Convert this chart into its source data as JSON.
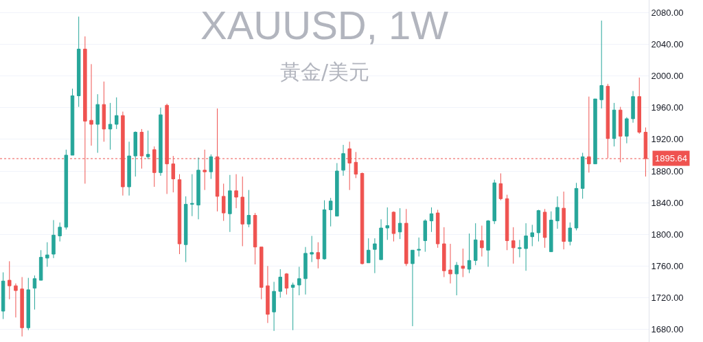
{
  "chart_data": {
    "type": "candlestick",
    "title": "XAUUSD, 1W",
    "subtitle": "黃金/美元",
    "categories": [
      null,
      null,
      null,
      null,
      null,
      null,
      null,
      null,
      null,
      null,
      null,
      null,
      null,
      null,
      null,
      null,
      null,
      null,
      null,
      null,
      null,
      null,
      null,
      null,
      null,
      null,
      null,
      null,
      null,
      null,
      null,
      null,
      null,
      null,
      null,
      null,
      null,
      null,
      null,
      null,
      null,
      null,
      null,
      null,
      null,
      null,
      null,
      null,
      null,
      null,
      null,
      null,
      null,
      null,
      null,
      null,
      null,
      null,
      null,
      null,
      null,
      null,
      null,
      null,
      null,
      null,
      null,
      null,
      null,
      null,
      null,
      null,
      null,
      null,
      null,
      null,
      null,
      null,
      null,
      null,
      null,
      null,
      null,
      null,
      null,
      null,
      null,
      null,
      null,
      null,
      null,
      null,
      null,
      null,
      null,
      null,
      null,
      null,
      null,
      null,
      null,
      null,
      null
    ],
    "ohlc": [
      [
        1703,
        1752,
        1693,
        1741
      ],
      [
        1742,
        1766,
        1718,
        1735
      ],
      [
        1735,
        1738,
        1695,
        1729
      ],
      [
        1731,
        1746,
        1671,
        1682
      ],
      [
        1682,
        1745,
        1679,
        1730
      ],
      [
        1732,
        1748,
        1705,
        1744
      ],
      [
        1742,
        1780,
        1742,
        1771
      ],
      [
        1770,
        1790,
        1759,
        1774
      ],
      [
        1775,
        1818,
        1770,
        1799
      ],
      [
        1798,
        1815,
        1791,
        1809
      ],
      [
        1809,
        1907,
        1806,
        1900
      ],
      [
        1900,
        1984,
        1900,
        1975
      ],
      [
        1975,
        2075,
        1961,
        2034
      ],
      [
        2034,
        2050,
        1864,
        1943
      ],
      [
        1944,
        2015,
        1912,
        1939
      ],
      [
        1939,
        1977,
        1903,
        1964
      ],
      [
        1964,
        1993,
        1917,
        1933
      ],
      [
        1933,
        1966,
        1907,
        1939
      ],
      [
        1939,
        1973,
        1933,
        1950
      ],
      [
        1950,
        1955,
        1849,
        1860
      ],
      [
        1860,
        1917,
        1849,
        1899
      ],
      [
        1899,
        1930,
        1873,
        1929
      ],
      [
        1929,
        1933,
        1883,
        1899
      ],
      [
        1898,
        1931,
        1895,
        1901
      ],
      [
        1907,
        1911,
        1860,
        1878
      ],
      [
        1878,
        1960,
        1874,
        1951
      ],
      [
        1963,
        1965,
        1851,
        1889
      ],
      [
        1889,
        1899,
        1853,
        1870
      ],
      [
        1869,
        1876,
        1775,
        1788
      ],
      [
        1787,
        1848,
        1765,
        1838
      ],
      [
        1838,
        1876,
        1823,
        1839
      ],
      [
        1837,
        1897,
        1819,
        1881
      ],
      [
        1881,
        1907,
        1856,
        1879
      ],
      [
        1879,
        1901,
        1870,
        1898
      ],
      [
        1898,
        1959,
        1829,
        1848
      ],
      [
        1848,
        1864,
        1817,
        1827
      ],
      [
        1826,
        1875,
        1803,
        1855
      ],
      [
        1855,
        1876,
        1833,
        1847
      ],
      [
        1847,
        1873,
        1785,
        1813
      ],
      [
        1813,
        1856,
        1809,
        1824
      ],
      [
        1824,
        1827,
        1762,
        1784
      ],
      [
        1784,
        1784,
        1718,
        1733
      ],
      [
        1735,
        1760,
        1688,
        1699
      ],
      [
        1702,
        1740,
        1678,
        1728
      ],
      [
        1728,
        1756,
        1720,
        1746
      ],
      [
        1750,
        1751,
        1724,
        1732
      ],
      [
        1733,
        1739,
        1679,
        1736
      ],
      [
        1736,
        1759,
        1723,
        1744
      ],
      [
        1744,
        1784,
        1724,
        1776
      ],
      [
        1775,
        1798,
        1765,
        1777
      ],
      [
        1777,
        1790,
        1757,
        1769
      ],
      [
        1769,
        1843,
        1768,
        1831
      ],
      [
        1831,
        1846,
        1810,
        1842
      ],
      [
        1823,
        1890,
        1823,
        1880
      ],
      [
        1881,
        1913,
        1874,
        1902
      ],
      [
        1908,
        1917,
        1856,
        1890
      ],
      [
        1891,
        1904,
        1871,
        1876
      ],
      [
        1877,
        1878,
        1762,
        1763
      ],
      [
        1764,
        1795,
        1764,
        1780
      ],
      [
        1781,
        1795,
        1751,
        1788
      ],
      [
        1768,
        1819,
        1768,
        1808
      ],
      [
        1808,
        1834,
        1793,
        1811
      ],
      [
        1828,
        1829,
        1791,
        1801
      ],
      [
        1803,
        1833,
        1794,
        1814
      ],
      [
        1814,
        1832,
        1760,
        1763
      ],
      [
        1763,
        1780,
        1684,
        1780
      ],
      [
        1780,
        1796,
        1772,
        1781
      ],
      [
        1792,
        1819,
        1778,
        1817
      ],
      [
        1817,
        1834,
        1803,
        1826
      ],
      [
        1827,
        1831,
        1783,
        1788
      ],
      [
        1788,
        1809,
        1746,
        1754
      ],
      [
        1755,
        1788,
        1738,
        1750
      ],
      [
        1750,
        1765,
        1723,
        1761
      ],
      [
        1760,
        1782,
        1746,
        1757
      ],
      [
        1756,
        1801,
        1751,
        1767
      ],
      [
        1767,
        1814,
        1761,
        1793
      ],
      [
        1792,
        1811,
        1772,
        1783
      ],
      [
        1780,
        1818,
        1759,
        1817
      ],
      [
        1817,
        1869,
        1813,
        1865
      ],
      [
        1864,
        1877,
        1843,
        1845
      ],
      [
        1845,
        1850,
        1780,
        1792
      ],
      [
        1792,
        1809,
        1763,
        1783
      ],
      [
        1782,
        1793,
        1771,
        1783
      ],
      [
        1782,
        1814,
        1754,
        1798
      ],
      [
        1797,
        1812,
        1785,
        1802
      ],
      [
        1802,
        1831,
        1791,
        1830
      ],
      [
        1828,
        1832,
        1783,
        1796
      ],
      [
        1778,
        1829,
        1778,
        1818
      ],
      [
        1817,
        1848,
        1807,
        1834
      ],
      [
        1833,
        1854,
        1781,
        1791
      ],
      [
        1791,
        1815,
        1786,
        1808
      ],
      [
        1808,
        1865,
        1805,
        1858
      ],
      [
        1858,
        1903,
        1845,
        1898
      ],
      [
        1898,
        1974,
        1878,
        1889
      ],
      [
        1889,
        1971,
        1889,
        1971
      ],
      [
        1970,
        2070,
        1959,
        1988
      ],
      [
        1987,
        1990,
        1896,
        1921
      ],
      [
        1921,
        1966,
        1911,
        1957
      ],
      [
        1957,
        1961,
        1891,
        1924
      ],
      [
        1924,
        1948,
        1915,
        1946
      ],
      [
        1946,
        1981,
        1941,
        1974
      ],
      [
        1974,
        1998,
        1927,
        1929
      ],
      [
        1929,
        1935,
        1873,
        1895.64
      ]
    ],
    "colors": [
      "#26a69a",
      "#ef5350",
      "#ef5350",
      "#ef5350",
      "#26a69a",
      "#26a69a",
      "#26a69a",
      "#26a69a",
      "#26a69a",
      "#26a69a",
      "#26a69a",
      "#26a69a",
      "#26a69a",
      "#ef5350",
      "#ef5350",
      "#26a69a",
      "#ef5350",
      "#26a69a",
      "#26a69a",
      "#ef5350",
      "#26a69a",
      "#26a69a",
      "#ef5350",
      "#26a69a",
      "#ef5350",
      "#26a69a",
      "#ef5350",
      "#ef5350",
      "#ef5350",
      "#26a69a",
      "#26a69a",
      "#26a69a",
      "#ef5350",
      "#26a69a",
      "#ef5350",
      "#ef5350",
      "#26a69a",
      "#ef5350",
      "#ef5350",
      "#26a69a",
      "#ef5350",
      "#ef5350",
      "#ef5350",
      "#26a69a",
      "#26a69a",
      "#ef5350",
      "#26a69a",
      "#26a69a",
      "#26a69a",
      "#26a69a",
      "#ef5350",
      "#26a69a",
      "#26a69a",
      "#26a69a",
      "#26a69a",
      "#ef5350",
      "#ef5350",
      "#ef5350",
      "#26a69a",
      "#26a69a",
      "#26a69a",
      "#26a69a",
      "#ef5350",
      "#26a69a",
      "#ef5350",
      "#26a69a",
      "#26a69a",
      "#26a69a",
      "#26a69a",
      "#ef5350",
      "#ef5350",
      "#ef5350",
      "#26a69a",
      "#ef5350",
      "#26a69a",
      "#26a69a",
      "#ef5350",
      "#26a69a",
      "#26a69a",
      "#ef5350",
      "#ef5350",
      "#ef5350",
      "#26a69a",
      "#26a69a",
      "#26a69a",
      "#26a69a",
      "#ef5350",
      "#26a69a",
      "#26a69a",
      "#ef5350",
      "#26a69a",
      "#26a69a",
      "#26a69a",
      "#ef5350",
      "#26a69a",
      "#26a69a",
      "#ef5350",
      "#26a69a",
      "#ef5350",
      "#26a69a",
      "#26a69a",
      "#ef5350",
      "#ef5350"
    ],
    "ylim": [
      1664,
      2096
    ],
    "yticks": [
      {
        "value": 1680,
        "label": "1680.00"
      },
      {
        "value": 1720,
        "label": "1720.00"
      },
      {
        "value": 1760,
        "label": "1760.00"
      },
      {
        "value": 1800,
        "label": "1800.00"
      },
      {
        "value": 1840,
        "label": "1840.00"
      },
      {
        "value": 1880,
        "label": "1880.00"
      },
      {
        "value": 1920,
        "label": "1920.00"
      },
      {
        "value": 1960,
        "label": "1960.00"
      },
      {
        "value": 2000,
        "label": "2000.00"
      },
      {
        "value": 2040,
        "label": "2040.00"
      },
      {
        "value": 2080,
        "label": "2080.00"
      }
    ],
    "ref_lines": [
      {
        "axis": "y",
        "value": 1895.64,
        "label": "1895.64",
        "color": "#ef5350",
        "line_style": "dotted"
      }
    ],
    "grid": "y"
  }
}
